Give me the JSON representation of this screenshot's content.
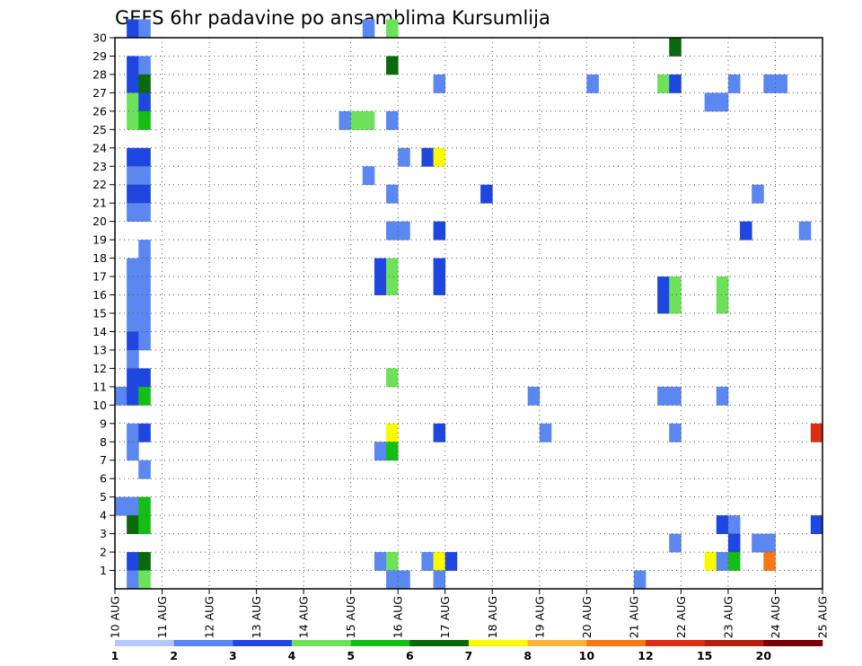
{
  "chart_data": {
    "type": "heatmap",
    "title": "GEFS 6hr padavine po ansamblima Kursumlija",
    "x_ticks": [
      "10 AUG",
      "11 AUG",
      "12 AUG",
      "13 AUG",
      "14 AUG",
      "15 AUG",
      "16 AUG",
      "17 AUG",
      "18 AUG",
      "19 AUG",
      "20 AUG",
      "21 AUG",
      "22 AUG",
      "23 AUG",
      "24 AUG",
      "25 AUG"
    ],
    "y_ticks": [
      1,
      2,
      3,
      4,
      5,
      6,
      7,
      8,
      9,
      10,
      11,
      12,
      13,
      14,
      15,
      16,
      17,
      18,
      19,
      20,
      21,
      22,
      23,
      24,
      25,
      26,
      27,
      28,
      29,
      30
    ],
    "xlim": [
      0,
      60
    ],
    "ylim": [
      0,
      30
    ],
    "grid": true,
    "colorbar": {
      "labels": [
        "1",
        "2",
        "3",
        "4",
        "5",
        "6",
        "7",
        "8",
        "10",
        "12",
        "15",
        "20"
      ],
      "colors": [
        "#b4c8fa",
        "#5a87f0",
        "#1e46e1",
        "#6ee15a",
        "#14be14",
        "#0a690a",
        "#fafa00",
        "#fab43c",
        "#f57814",
        "#dc2d14",
        "#b41e0a",
        "#78000a"
      ]
    },
    "cells": [
      [
        1,
        30,
        2
      ],
      [
        2,
        30,
        1
      ],
      [
        21,
        30,
        1
      ],
      [
        23,
        30,
        3
      ],
      [
        47,
        29,
        5
      ],
      [
        1,
        28,
        2
      ],
      [
        2,
        28,
        1
      ],
      [
        23,
        28,
        5
      ],
      [
        1,
        27,
        2
      ],
      [
        2,
        27,
        5
      ],
      [
        27,
        27,
        1
      ],
      [
        40,
        27,
        1
      ],
      [
        46,
        27,
        3
      ],
      [
        47,
        27,
        2
      ],
      [
        52,
        27,
        1
      ],
      [
        55,
        27,
        1
      ],
      [
        56,
        27,
        1
      ],
      [
        1,
        26,
        3
      ],
      [
        2,
        26,
        2
      ],
      [
        50,
        26,
        1
      ],
      [
        51,
        26,
        1
      ],
      [
        1,
        25,
        3
      ],
      [
        2,
        25,
        4
      ],
      [
        19,
        25,
        1
      ],
      [
        20,
        25,
        3
      ],
      [
        21,
        25,
        3
      ],
      [
        23,
        25,
        1
      ],
      [
        24,
        23,
        1
      ],
      [
        26,
        23,
        2
      ],
      [
        27,
        23,
        6
      ],
      [
        1,
        23,
        2
      ],
      [
        2,
        23,
        2
      ],
      [
        1,
        22,
        1
      ],
      [
        2,
        22,
        1
      ],
      [
        21,
        22,
        1
      ],
      [
        1,
        21,
        2
      ],
      [
        2,
        21,
        2
      ],
      [
        23,
        21,
        1
      ],
      [
        31,
        21,
        2
      ],
      [
        54,
        21,
        1
      ],
      [
        1,
        20,
        1
      ],
      [
        2,
        20,
        1
      ],
      [
        23,
        19,
        1
      ],
      [
        24,
        19,
        1
      ],
      [
        27,
        19,
        2
      ],
      [
        53,
        19,
        2
      ],
      [
        58,
        19,
        1
      ],
      [
        2,
        18,
        1
      ],
      [
        1,
        17,
        1
      ],
      [
        2,
        17,
        1
      ],
      [
        22,
        17,
        2
      ],
      [
        23,
        17,
        3
      ],
      [
        27,
        17,
        2
      ],
      [
        1,
        16,
        1
      ],
      [
        2,
        16,
        1
      ],
      [
        22,
        16,
        2
      ],
      [
        23,
        16,
        3
      ],
      [
        27,
        16,
        2
      ],
      [
        46,
        16,
        2
      ],
      [
        47,
        16,
        3
      ],
      [
        51,
        16,
        3
      ],
      [
        1,
        15,
        1
      ],
      [
        2,
        15,
        1
      ],
      [
        46,
        15,
        2
      ],
      [
        47,
        15,
        3
      ],
      [
        51,
        15,
        3
      ],
      [
        1,
        14,
        1
      ],
      [
        2,
        14,
        1
      ],
      [
        1,
        13,
        2
      ],
      [
        2,
        13,
        1
      ],
      [
        1,
        12,
        1
      ],
      [
        1,
        11,
        2
      ],
      [
        2,
        11,
        2
      ],
      [
        23,
        11,
        3
      ],
      [
        0,
        10,
        1
      ],
      [
        1,
        10,
        2
      ],
      [
        2,
        10,
        4
      ],
      [
        35,
        10,
        1
      ],
      [
        46,
        10,
        1
      ],
      [
        47,
        10,
        1
      ],
      [
        51,
        10,
        1
      ],
      [
        1,
        8,
        1
      ],
      [
        2,
        8,
        2
      ],
      [
        23,
        8,
        6
      ],
      [
        27,
        8,
        2
      ],
      [
        36,
        8,
        1
      ],
      [
        47,
        8,
        1
      ],
      [
        59,
        8,
        9
      ],
      [
        1,
        7,
        1
      ],
      [
        22,
        7,
        1
      ],
      [
        23,
        7,
        4
      ],
      [
        2,
        6,
        1
      ],
      [
        0,
        4,
        1
      ],
      [
        1,
        4,
        1
      ],
      [
        2,
        4,
        4
      ],
      [
        1,
        3,
        5
      ],
      [
        2,
        3,
        4
      ],
      [
        51,
        3,
        2
      ],
      [
        52,
        3,
        1
      ],
      [
        59,
        3,
        2
      ],
      [
        47,
        2,
        1
      ],
      [
        52,
        2,
        2
      ],
      [
        54,
        2,
        1
      ],
      [
        55,
        2,
        1
      ],
      [
        1,
        1,
        2
      ],
      [
        2,
        1,
        5
      ],
      [
        22,
        1,
        1
      ],
      [
        23,
        1,
        3
      ],
      [
        26,
        1,
        1
      ],
      [
        27,
        1,
        6
      ],
      [
        28,
        1,
        2
      ],
      [
        50,
        1,
        6
      ],
      [
        51,
        1,
        1
      ],
      [
        52,
        1,
        4
      ],
      [
        55,
        1,
        8
      ],
      [
        1,
        0,
        1
      ],
      [
        2,
        0,
        3
      ],
      [
        23,
        0,
        1
      ],
      [
        24,
        0,
        1
      ],
      [
        27,
        0,
        1
      ],
      [
        44,
        0,
        1
      ]
    ]
  }
}
